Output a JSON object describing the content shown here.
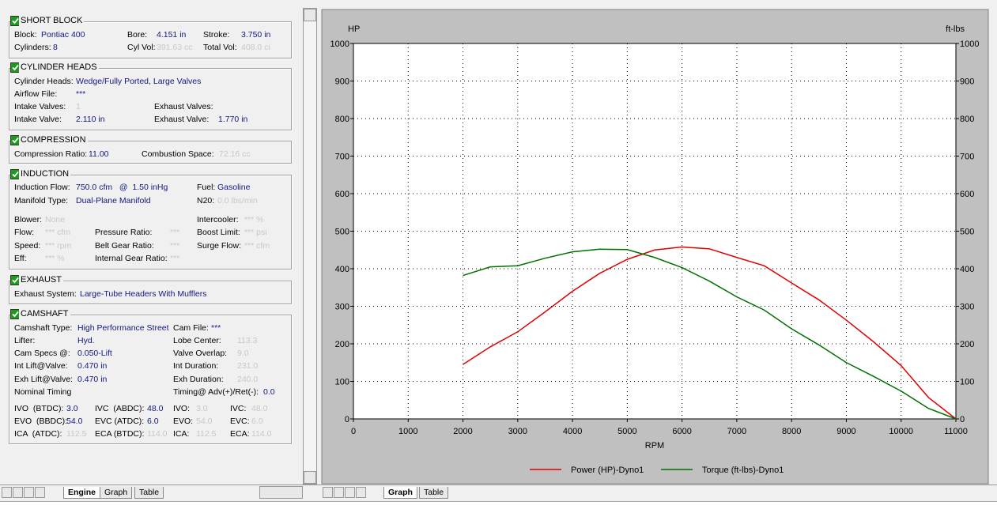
{
  "engine_panel": {
    "sections": [
      {
        "title": "SHORT BLOCK",
        "fields": [
          {
            "label": "Block:",
            "value": "Pontiac 400"
          },
          {
            "label": "Bore:",
            "value": "4.151 in"
          },
          {
            "label": "Stroke:",
            "value": "3.750 in"
          },
          {
            "label": "Cylinders:",
            "value": "8"
          },
          {
            "label": "Cyl Vol:",
            "value": "391.63 cc"
          },
          {
            "label": "Total Vol:",
            "value": "408.0 ci"
          }
        ]
      },
      {
        "title": "CYLINDER HEADS",
        "fields": [
          {
            "label": "Cylinder Heads:",
            "value": "Wedge/Fully Ported, Large Valves"
          },
          {
            "label": "Airflow File:",
            "value": "***"
          },
          {
            "label": "Intake Valves:",
            "value": "1"
          },
          {
            "label": "Exhaust Valves:"
          },
          {
            "label": "Intake Valve:",
            "value": "2.110 in"
          },
          {
            "label": "Exhaust Valve:",
            "value": "1.770 in"
          }
        ]
      },
      {
        "title": "COMPRESSION",
        "fields": [
          {
            "label": "Compression Ratio:",
            "value": "11.00"
          },
          {
            "label": "Combustion Space:",
            "value": "72.16 cc"
          }
        ]
      },
      {
        "title": "INDUCTION",
        "fields": [
          {
            "label": "Induction Flow:",
            "value": "750.0 cfm   @  1.50 inHg"
          },
          {
            "label": "Fuel:",
            "value": "Gasoline"
          },
          {
            "label": "Manifold Type:",
            "value": "Dual-Plane Manifold"
          },
          {
            "label": "N20:",
            "value": "0.0 lbs/min"
          },
          {
            "label": "Blower:",
            "value": "None"
          },
          {
            "label": "Intercooler:",
            "value": "*** %"
          },
          {
            "label": "Flow:",
            "value": "*** cfm"
          },
          {
            "label": "Pressure Ratio:",
            "value": "***"
          },
          {
            "label": "Boost Limit:",
            "value": "*** psi"
          },
          {
            "label": "Speed:",
            "value": "*** rpm"
          },
          {
            "label": "Belt Gear Ratio:",
            "value": "***"
          },
          {
            "label": "Surge Flow:",
            "value": "*** cfm"
          },
          {
            "label": "Eff:",
            "value": "*** %"
          },
          {
            "label": "Internal Gear Ratio:",
            "value": "***"
          }
        ]
      },
      {
        "title": "EXHAUST",
        "fields": [
          {
            "label": "Exhaust System:",
            "value": "Large-Tube Headers With Mufflers"
          }
        ]
      },
      {
        "title": "CAMSHAFT",
        "fields": [
          {
            "label": "Camshaft Type:",
            "value": "High Performance Street"
          },
          {
            "label": "Cam File:",
            "value": "***"
          },
          {
            "label": "Lifter:",
            "value": "Hyd."
          },
          {
            "label": "Lobe Center:",
            "value": "113.3"
          },
          {
            "label": "Cam Specs @:",
            "value": "0.050-Lift"
          },
          {
            "label": "Valve Overlap:",
            "value": "9.0"
          },
          {
            "label": "Int Lift@Valve:",
            "value": "0.470 in"
          },
          {
            "label": "Int Duration:",
            "value": "231.0"
          },
          {
            "label": "Exh Lift@Valve:",
            "value": "0.470 in"
          },
          {
            "label": "Exh Duration:",
            "value": "240.0"
          },
          {
            "label": "Nominal Timing"
          },
          {
            "label": "Timing@ Adv(+)/Ret(-):",
            "value": "0.0"
          },
          {
            "label": "IVO  (BTDC):",
            "value": "3.0"
          },
          {
            "label": "IVC  (ABDC):",
            "value": "48.0"
          },
          {
            "label": "IVO:",
            "value": "3.0"
          },
          {
            "label": "IVC:",
            "value": "48.0"
          },
          {
            "label": "EVO  (BBDC):",
            "value": "54.0"
          },
          {
            "label": "EVC (ATDC):",
            "value": "6.0"
          },
          {
            "label": "EVO:",
            "value": "54.0"
          },
          {
            "label": "EVC:",
            "value": "6.0"
          },
          {
            "label": "ICA  (ATDC):",
            "value": "112.5"
          },
          {
            "label": "ECA (BTDC):",
            "value": "114.0"
          },
          {
            "label": "ICA:",
            "value": "112.5"
          },
          {
            "label": "ECA:",
            "value": "114.0"
          }
        ]
      }
    ]
  },
  "tabs": {
    "left": [
      "Engine",
      "Graph",
      "Table"
    ],
    "right": [
      "Graph",
      "Table"
    ]
  },
  "chart_data": {
    "type": "line",
    "x_label": "RPM",
    "y_label": "HP",
    "y2_label": "ft-lbs",
    "x": [
      2000,
      2500,
      3000,
      3500,
      4000,
      4500,
      5000,
      5500,
      6000,
      6500,
      7000,
      7500,
      8000,
      8500,
      9000,
      9500,
      10000,
      10500,
      11000
    ],
    "xlim": [
      0,
      11000
    ],
    "xticks": [
      0,
      1000,
      2000,
      3000,
      4000,
      5000,
      6000,
      7000,
      8000,
      9000,
      10000,
      11000
    ],
    "ylim": [
      0,
      1000
    ],
    "yticks": [
      0,
      100,
      200,
      300,
      400,
      500,
      600,
      700,
      800,
      900,
      1000
    ],
    "y2lim": [
      0,
      1000
    ],
    "y2ticks": [
      0,
      100,
      200,
      300,
      400,
      500,
      600,
      700,
      800,
      900,
      1000
    ],
    "grid": true,
    "legend": "bottom",
    "series": [
      {
        "name": "Power (HP)-Dyno1",
        "color": "#e00000",
        "values": [
          145,
          192,
          232,
          285,
          340,
          388,
          425,
          450,
          458,
          453,
          430,
          408,
          362,
          317,
          263,
          205,
          142,
          57,
          0
        ]
      },
      {
        "name": "Torque (ft-lbs)-Dyno1",
        "color": "#007000",
        "axis": "y2",
        "values": [
          382,
          405,
          408,
          428,
          445,
          452,
          451,
          430,
          403,
          367,
          325,
          290,
          240,
          197,
          150,
          113,
          74,
          28,
          0
        ]
      }
    ]
  }
}
